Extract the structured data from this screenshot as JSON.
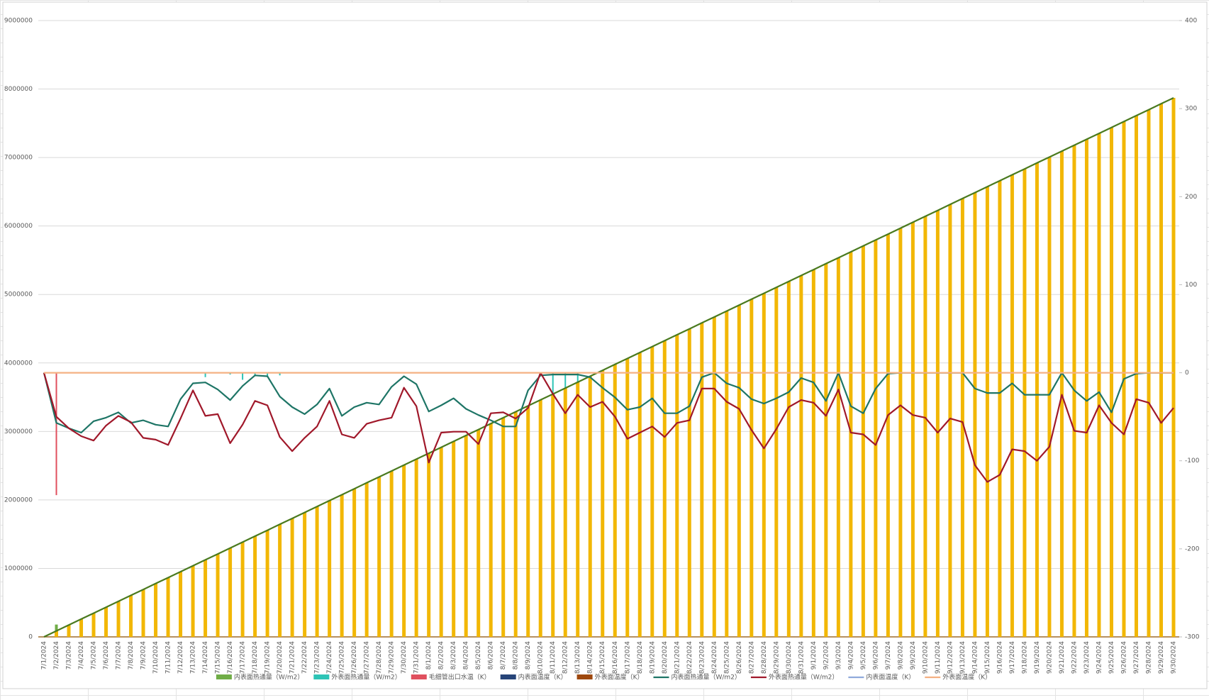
{
  "chart_data": {
    "type": "combo",
    "categories": [
      "7/1/2024",
      "7/2/2024",
      "7/3/2024",
      "7/4/2024",
      "7/5/2024",
      "7/6/2024",
      "7/7/2024",
      "7/8/2024",
      "7/9/2024",
      "7/10/2024",
      "7/11/2024",
      "7/12/2024",
      "7/13/2024",
      "7/14/2024",
      "7/15/2024",
      "7/16/2024",
      "7/17/2024",
      "7/18/2024",
      "7/19/2024",
      "7/20/2024",
      "7/21/2024",
      "7/22/2024",
      "7/23/2024",
      "7/24/2024",
      "7/25/2024",
      "7/26/2024",
      "7/27/2024",
      "7/28/2024",
      "7/29/2024",
      "7/30/2024",
      "7/31/2024",
      "8/1/2024",
      "8/2/2024",
      "8/3/2024",
      "8/4/2024",
      "8/5/2024",
      "8/6/2024",
      "8/7/2024",
      "8/8/2024",
      "8/9/2024",
      "8/10/2024",
      "8/11/2024",
      "8/12/2024",
      "8/13/2024",
      "8/14/2024",
      "8/15/2024",
      "8/16/2024",
      "8/17/2024",
      "8/18/2024",
      "8/19/2024",
      "8/20/2024",
      "8/21/2024",
      "8/22/2024",
      "8/23/2024",
      "8/24/2024",
      "8/25/2024",
      "8/26/2024",
      "8/27/2024",
      "8/28/2024",
      "8/29/2024",
      "8/30/2024",
      "8/31/2024",
      "9/1/2024",
      "9/2/2024",
      "9/3/2024",
      "9/4/2024",
      "9/5/2024",
      "9/6/2024",
      "9/7/2024",
      "9/8/2024",
      "9/9/2024",
      "9/10/2024",
      "9/11/2024",
      "9/12/2024",
      "9/13/2024",
      "9/14/2024",
      "9/15/2024",
      "9/16/2024",
      "9/17/2024",
      "9/18/2024",
      "9/19/2024",
      "9/20/2024",
      "9/21/2024",
      "9/22/2024",
      "9/23/2024",
      "9/24/2024",
      "9/25/2024",
      "9/26/2024",
      "9/27/2024",
      "9/28/2024",
      "9/29/2024",
      "9/30/2024"
    ],
    "ylim": [
      0,
      9000000
    ],
    "yticks": [
      0,
      1000000,
      2000000,
      3000000,
      4000000,
      5000000,
      6000000,
      7000000,
      8000000,
      9000000
    ],
    "y2lim": [
      -300,
      400
    ],
    "y2ticks": [
      -300,
      -200,
      -100,
      0,
      100,
      200,
      300,
      400
    ],
    "grid": true,
    "series": [
      {
        "name": "内表面热通量（W/m2）",
        "kind": "bar",
        "color": "#70ad47",
        "values": [
          null,
          180000,
          null,
          null,
          null,
          null,
          null,
          null,
          null,
          null,
          null,
          null,
          null,
          null,
          null,
          null,
          null,
          null,
          null,
          null,
          null,
          null,
          null,
          null,
          null,
          null,
          null,
          null,
          null,
          null,
          null,
          null,
          null,
          null,
          null,
          null,
          null,
          null,
          null,
          null,
          null,
          null,
          null,
          null,
          null,
          null,
          null,
          null,
          null,
          null,
          null,
          null,
          null,
          null,
          null,
          null,
          null,
          null,
          null,
          null,
          null,
          null,
          null,
          null,
          null,
          null,
          null,
          null,
          null,
          null,
          null,
          null,
          null,
          null,
          null,
          null,
          null,
          null,
          null,
          null,
          null,
          null,
          null,
          null,
          null,
          null,
          null,
          null,
          null,
          null,
          null,
          null
        ]
      },
      {
        "name": "外表面热通量（W/m2）",
        "kind": "bar",
        "axis": "y2",
        "color": "#2ec4b6",
        "values": [
          null,
          null,
          null,
          null,
          null,
          null,
          null,
          null,
          null,
          null,
          null,
          null,
          null,
          -5,
          null,
          -2,
          -8,
          -3,
          -5,
          -3,
          null,
          null,
          null,
          null,
          null,
          null,
          null,
          null,
          null,
          null,
          null,
          null,
          null,
          null,
          null,
          null,
          null,
          null,
          null,
          null,
          null,
          -25,
          -22,
          -10,
          null,
          null,
          null,
          null,
          null,
          null,
          null,
          null,
          null,
          null,
          null,
          null,
          null,
          null,
          null,
          null,
          null,
          null,
          null,
          null,
          null,
          null,
          null,
          -15,
          null,
          -57,
          -30,
          -25,
          -50,
          -40,
          -40,
          -45,
          -52,
          -47,
          -35,
          -15,
          null,
          -18,
          -8,
          null,
          null,
          null,
          null,
          -10,
          -10,
          -30,
          -50,
          -40
        ]
      },
      {
        "name": "毛细管出口水温（K）",
        "kind": "bar",
        "axis": "y2",
        "color": "#e0505e",
        "values": [
          null,
          -139,
          null,
          null,
          null,
          null,
          null,
          null,
          null,
          null,
          null,
          null,
          null,
          null,
          null,
          null,
          null,
          null,
          null,
          null,
          null,
          null,
          null,
          null,
          null,
          null,
          null,
          null,
          null,
          null,
          null,
          null,
          null,
          null,
          null,
          null,
          null,
          null,
          null,
          null,
          null,
          null,
          null,
          null,
          null,
          null,
          null,
          null,
          null,
          null,
          null,
          null,
          null,
          null,
          null,
          null,
          null,
          null,
          null,
          null,
          null,
          null,
          null,
          null,
          null,
          null,
          null,
          null,
          null,
          null,
          null,
          null,
          null,
          null,
          null,
          null,
          null,
          null,
          null,
          null,
          null,
          null,
          null,
          null,
          null,
          null,
          null,
          null,
          null,
          null,
          null,
          null
        ]
      },
      {
        "name": "内表面温度（K）",
        "kind": "bar",
        "axis": "y2",
        "color": "#264478",
        "values": [
          null,
          null,
          null,
          null,
          null,
          null,
          null,
          null,
          null,
          null,
          null,
          null,
          null,
          null,
          null,
          null,
          null,
          null,
          null,
          null,
          null,
          null,
          null,
          null,
          null,
          null,
          null,
          null,
          null,
          null,
          null,
          null,
          null,
          null,
          null,
          null,
          null,
          null,
          null,
          null,
          null,
          null,
          null,
          null,
          null,
          null,
          null,
          null,
          null,
          null,
          null,
          null,
          null,
          null,
          null,
          null,
          null,
          null,
          null,
          null,
          null,
          null,
          null,
          null,
          null,
          null,
          null,
          null,
          null,
          null,
          null,
          null,
          null,
          null,
          null,
          null,
          null,
          null,
          null,
          null,
          null,
          null,
          null,
          null,
          null,
          null,
          null,
          null,
          null,
          null,
          null,
          null
        ]
      },
      {
        "name": "外表面温度（K）",
        "kind": "bar",
        "axis": "y2",
        "color": "#9e480e",
        "values": [
          null,
          null,
          null,
          null,
          null,
          null,
          null,
          null,
          null,
          null,
          null,
          null,
          null,
          null,
          null,
          null,
          null,
          null,
          null,
          null,
          null,
          null,
          null,
          null,
          null,
          null,
          null,
          null,
          null,
          null,
          null,
          null,
          null,
          null,
          null,
          null,
          null,
          null,
          null,
          null,
          null,
          null,
          null,
          null,
          null,
          null,
          null,
          null,
          null,
          null,
          null,
          null,
          null,
          null,
          null,
          null,
          null,
          null,
          null,
          null,
          null,
          null,
          null,
          null,
          null,
          null,
          null,
          null,
          null,
          null,
          null,
          null,
          null,
          null,
          null,
          null,
          null,
          null,
          null,
          null,
          null,
          null,
          null,
          null,
          null,
          null,
          null,
          null,
          null,
          null,
          null,
          null
        ]
      },
      {
        "kind": "bar",
        "color": "#f2b705",
        "values": [
          0,
          86500,
          173000,
          259500,
          346000,
          432500,
          519000,
          605500,
          692000,
          778500,
          865000,
          951500,
          1038000,
          1124500,
          1211000,
          1297500,
          1384000,
          1470500,
          1557000,
          1643500,
          1730000,
          1816500,
          1903000,
          1989500,
          2076000,
          2162500,
          2249000,
          2335500,
          2422000,
          2508500,
          2595000,
          2681500,
          2768000,
          2854500,
          2941000,
          3027500,
          3114000,
          3200500,
          3287000,
          3373500,
          3460000,
          3546500,
          3633000,
          3719500,
          3806000,
          3892500,
          3979000,
          4065500,
          4152000,
          4238500,
          4325000,
          4411500,
          4498000,
          4584500,
          4671000,
          4757500,
          4844000,
          4930500,
          5017000,
          5103500,
          5190000,
          5276500,
          5363000,
          5449500,
          5536000,
          5622500,
          5709000,
          5795500,
          5882000,
          5968500,
          6055000,
          6141500,
          6228000,
          6314500,
          6401000,
          6487500,
          6574000,
          6660500,
          6747000,
          6833500,
          6920000,
          7006500,
          7093000,
          7179500,
          7266000,
          7352500,
          7439000,
          7525500,
          7612000,
          7698500,
          7785000,
          7871500
        ]
      },
      {
        "kind": "line",
        "color": "#4a7a1f",
        "values": [
          0,
          86500,
          173000,
          259500,
          346000,
          432500,
          519000,
          605500,
          692000,
          778500,
          865000,
          951500,
          1038000,
          1124500,
          1211000,
          1297500,
          1384000,
          1470500,
          1557000,
          1643500,
          1730000,
          1816500,
          1903000,
          1989500,
          2076000,
          2162500,
          2249000,
          2335500,
          2422000,
          2508500,
          2595000,
          2681500,
          2768000,
          2854500,
          2941000,
          3027500,
          3114000,
          3200500,
          3287000,
          3373500,
          3460000,
          3546500,
          3633000,
          3719500,
          3806000,
          3892500,
          3979000,
          4065500,
          4152000,
          4238500,
          4325000,
          4411500,
          4498000,
          4584500,
          4671000,
          4757500,
          4844000,
          4930500,
          5017000,
          5103500,
          5190000,
          5276500,
          5363000,
          5449500,
          5536000,
          5622500,
          5709000,
          5795500,
          5882000,
          5968500,
          6055000,
          6141500,
          6228000,
          6314500,
          6401000,
          6487500,
          6574000,
          6660500,
          6747000,
          6833500,
          6920000,
          7006500,
          7093000,
          7179500,
          7266000,
          7352500,
          7439000,
          7525500,
          7612000,
          7698500,
          7785000,
          7871500
        ]
      },
      {
        "name": "内表面热通量（W/m2）",
        "kind": "line",
        "axis": "y2",
        "color": "#1e7566",
        "values": [
          0,
          -57,
          -63,
          -68,
          -55,
          -51,
          -45,
          -57,
          -54,
          -59,
          -61,
          -30,
          -12,
          -11,
          -19,
          -31,
          -15,
          -3,
          -4,
          -27,
          -39,
          -47,
          -36,
          -18,
          -49,
          -39,
          -34,
          -36,
          -16,
          -4,
          -13,
          -44,
          -37,
          -29,
          -41,
          -48,
          -54,
          -61,
          -61,
          -20,
          -3,
          -2,
          -2,
          -2,
          -5,
          -17,
          -28,
          -42,
          -39,
          -29,
          -46,
          -46,
          -38,
          -5,
          0,
          -12,
          -17,
          -30,
          -35,
          -29,
          -22,
          -6,
          -11,
          -32,
          0,
          -38,
          -46,
          -18,
          -1,
          0,
          0,
          0,
          0,
          0,
          0,
          -18,
          -23,
          -23,
          -12,
          -25,
          -25,
          -25,
          0,
          -20,
          -32,
          -22,
          -45,
          -7,
          -1,
          0,
          0,
          0
        ]
      },
      {
        "name": "外表面热通量（W/m2）",
        "kind": "line",
        "axis": "y2",
        "color": "#a0182a",
        "values": [
          0,
          -50,
          -63,
          -72,
          -77,
          -60,
          -49,
          -56,
          -74,
          -76,
          -82,
          -52,
          -20,
          -49,
          -47,
          -80,
          -59,
          -32,
          -37,
          -73,
          -89,
          -74,
          -61,
          -32,
          -70,
          -74,
          -58,
          -54,
          -51,
          -17,
          -38,
          -102,
          -68,
          -67,
          -67,
          -81,
          -46,
          -45,
          -52,
          -40,
          0,
          -24,
          -46,
          -25,
          -39,
          -33,
          -50,
          -75,
          -68,
          -61,
          -73,
          -57,
          -54,
          -18,
          -18,
          -33,
          -41,
          -65,
          -86,
          -64,
          -39,
          -31,
          -34,
          -49,
          -19,
          -68,
          -70,
          -82,
          -48,
          -37,
          -48,
          -51,
          -68,
          -52,
          -56,
          -105,
          -124,
          -116,
          -87,
          -89,
          -100,
          -84,
          -25,
          -66,
          -68,
          -37,
          -57,
          -70,
          -30,
          -34,
          -57,
          -40
        ]
      },
      {
        "name": "内表面温度（K）",
        "kind": "line",
        "axis": "y2",
        "color": "#8faadc",
        "values": [
          null,
          null,
          null,
          null,
          null,
          null,
          null,
          null,
          null,
          null,
          null,
          null,
          null,
          null,
          null,
          null,
          null,
          null,
          null,
          null,
          null,
          null,
          null,
          null,
          null,
          null,
          null,
          null,
          null,
          null,
          null,
          null,
          null,
          null,
          null,
          null,
          null,
          null,
          null,
          null,
          null,
          null,
          null,
          null,
          null,
          null,
          null,
          null,
          null,
          null,
          null,
          null,
          null,
          null,
          null,
          null,
          null,
          null,
          null,
          null,
          null,
          null,
          null,
          null,
          null,
          null,
          null,
          null,
          null,
          null,
          null,
          null,
          null,
          null,
          null,
          null,
          null,
          null,
          null,
          null,
          null,
          null,
          null,
          null,
          null,
          null,
          null,
          null,
          null,
          null,
          null,
          null
        ]
      },
      {
        "name": "外表面温度（K）",
        "kind": "line",
        "axis": "y2",
        "color": "#f4b183",
        "values": [
          0,
          0,
          0,
          0,
          0,
          0,
          0,
          0,
          0,
          0,
          0,
          0,
          0,
          0,
          0,
          0,
          0,
          0,
          0,
          0,
          0,
          0,
          0,
          0,
          0,
          0,
          0,
          0,
          0,
          0,
          0,
          0,
          0,
          0,
          0,
          0,
          0,
          0,
          0,
          0,
          0,
          0,
          0,
          0,
          0,
          0,
          0,
          0,
          0,
          0,
          0,
          0,
          0,
          0,
          0,
          0,
          0,
          0,
          0,
          0,
          0,
          0,
          0,
          0,
          0,
          0,
          0,
          0,
          0,
          0,
          0,
          0,
          0,
          0,
          0,
          0,
          0,
          0,
          0,
          0,
          0,
          0,
          0,
          0,
          0,
          0,
          0,
          0,
          0,
          0,
          0,
          0
        ]
      }
    ]
  }
}
